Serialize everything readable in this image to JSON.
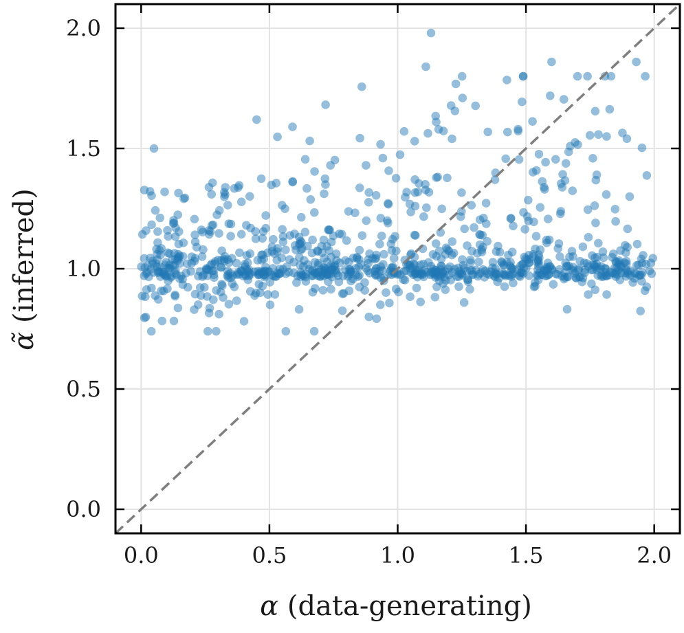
{
  "chart_data": {
    "type": "scatter",
    "title": "",
    "xlabel": {
      "symbol": "α",
      "text": " (data-generating)"
    },
    "ylabel": {
      "symbol": "α̃",
      "text": " (inferred)"
    },
    "xlim": [
      -0.1,
      2.1
    ],
    "ylim": [
      -0.1,
      2.1
    ],
    "xticks": [
      0.0,
      0.5,
      1.0,
      1.5,
      2.0
    ],
    "yticks": [
      0.0,
      0.5,
      1.0,
      1.5,
      2.0
    ],
    "xtick_labels": [
      "0.0",
      "0.5",
      "1.0",
      "1.5",
      "2.0"
    ],
    "ytick_labels": [
      "0.0",
      "0.5",
      "1.0",
      "1.5",
      "2.0"
    ],
    "grid": true,
    "reference_line": {
      "label": "identity y = x",
      "style": "dashed",
      "color": "#7f7f7f",
      "from": [
        -0.1,
        -0.1
      ],
      "to": [
        2.1,
        2.1
      ]
    },
    "series": [
      {
        "name": "samples",
        "color": "#1f77b4",
        "alpha": 0.48,
        "n_points": 1000,
        "generator": "seeded reproduction of the visible point cloud",
        "notable_points": [
          {
            "x": 1.13,
            "y": 1.98
          },
          {
            "x": 1.11,
            "y": 1.84
          },
          {
            "x": 1.6,
            "y": 1.86
          },
          {
            "x": 1.93,
            "y": 1.86
          },
          {
            "x": 0.04,
            "y": 0.74
          },
          {
            "x": 0.26,
            "y": 0.74
          },
          {
            "x": 0.05,
            "y": 1.5
          },
          {
            "x": 0.45,
            "y": 1.62
          },
          {
            "x": 0.59,
            "y": 1.59
          },
          {
            "x": 1.15,
            "y": 1.61
          }
        ]
      }
    ]
  }
}
